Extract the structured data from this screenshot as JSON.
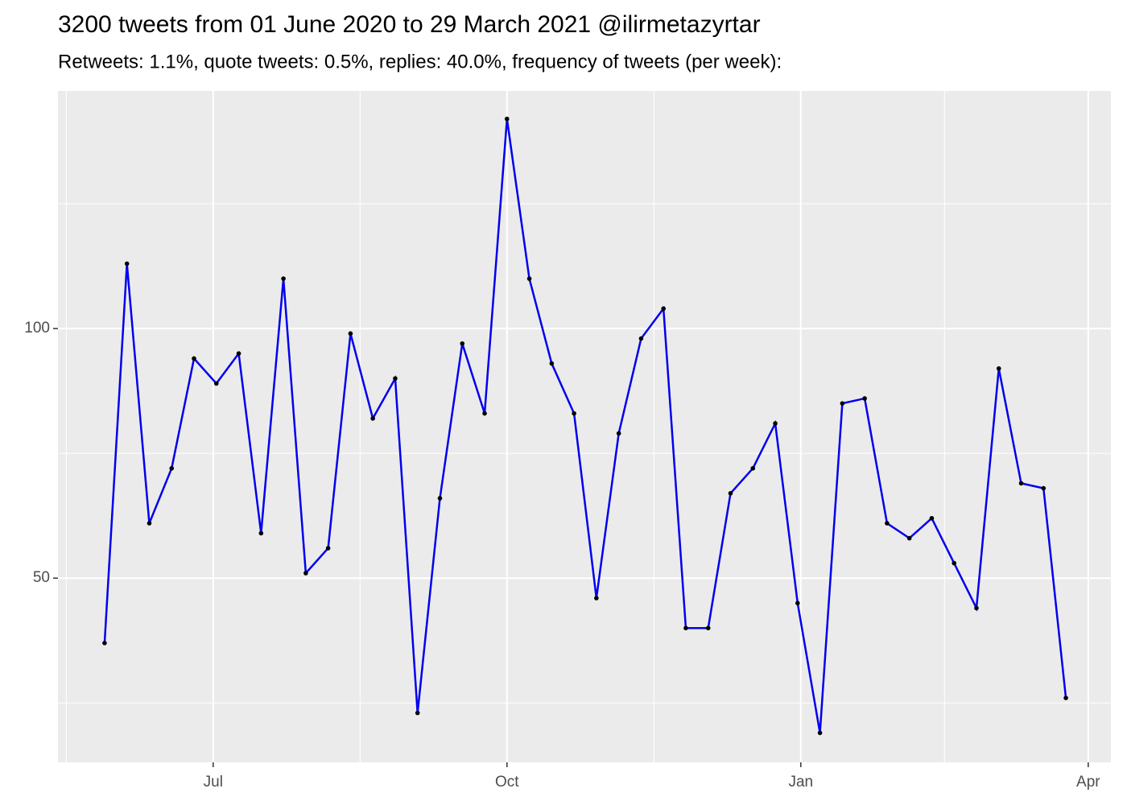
{
  "chart_data": {
    "type": "line",
    "title": "3200 tweets from 01 June 2020 to 29 March 2021 @ilirmetazyrtar",
    "subtitle": "Retweets: 1.1%, quote tweets: 0.5%, replies: 40.0%, frequency of tweets (per week):",
    "x": [
      0,
      7,
      14,
      21,
      28,
      35,
      42,
      49,
      56,
      63,
      70,
      77,
      84,
      91,
      98,
      105,
      112,
      119,
      126,
      133,
      140,
      147,
      154,
      161,
      168,
      175,
      182,
      189,
      196,
      203,
      210,
      217,
      224,
      231,
      238,
      245,
      252,
      259,
      266,
      273,
      280,
      287,
      294,
      301
    ],
    "series": [
      {
        "line_color": "#0000ee",
        "point_color": "#000000",
        "values": [
          37,
          113,
          61,
          72,
          94,
          89,
          95,
          59,
          110,
          51,
          56,
          99,
          82,
          90,
          23,
          66,
          97,
          83,
          142,
          110,
          93,
          83,
          46,
          79,
          98,
          104,
          40,
          40,
          67,
          72,
          81,
          45,
          19,
          85,
          86,
          61,
          58,
          62,
          53,
          44,
          92,
          69,
          68,
          26
        ]
      }
    ],
    "xlim": [
      -14.6,
      315.1
    ],
    "xticks": [
      {
        "value": 34,
        "label": "Jul"
      },
      {
        "value": 126,
        "label": "Oct"
      },
      {
        "value": 218,
        "label": "Jan"
      },
      {
        "value": 308,
        "label": "Apr"
      }
    ],
    "minor_xticks": [
      -12,
      80,
      172,
      263
    ],
    "ylim": [
      13.1,
      147.6
    ],
    "yticks": [
      50,
      100
    ],
    "minor_yticks": [
      25,
      75,
      125
    ],
    "grid": true,
    "panel_color": "#ebebeb"
  }
}
